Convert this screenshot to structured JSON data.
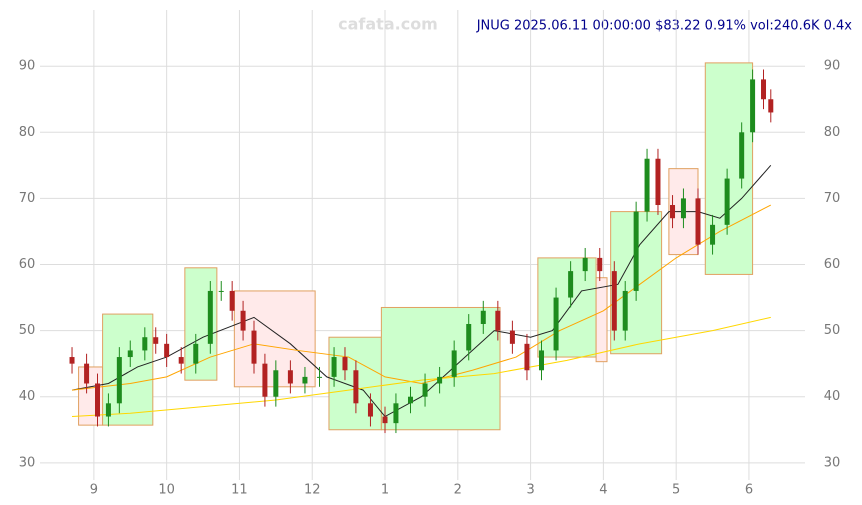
{
  "chart_data": {
    "type": "candlestick",
    "title": "JNUG 2025.06.11 00:00:00 $83.22 0.91% vol:240.6K 0.4x",
    "watermark": "cafata.com",
    "xlim": [
      8.26,
      18.77
    ],
    "ylim": [
      27.4,
      98.5
    ],
    "xticks": [
      9,
      10,
      11,
      12,
      {
        "value": 13,
        "label": "1"
      },
      {
        "value": 14,
        "label": "2"
      },
      {
        "value": 15,
        "label": "3"
      },
      {
        "value": 16,
        "label": "4"
      },
      {
        "value": 17,
        "label": "5"
      },
      {
        "value": 18,
        "label": "6"
      }
    ],
    "yticks": [
      30,
      40,
      50,
      60,
      70,
      80,
      90
    ],
    "grid": true,
    "up_color": "#1e8c1e",
    "down_color": "#b22222",
    "x": [
      8.7,
      8.9,
      9.05,
      9.2,
      9.35,
      9.5,
      9.7,
      9.85,
      10.0,
      10.2,
      10.4,
      10.6,
      10.75,
      10.9,
      11.05,
      11.2,
      11.35,
      11.5,
      11.7,
      11.9,
      12.1,
      12.3,
      12.45,
      12.6,
      12.8,
      13.0,
      13.15,
      13.35,
      13.55,
      13.75,
      13.95,
      14.15,
      14.35,
      14.55,
      14.75,
      14.95,
      15.15,
      15.35,
      15.55,
      15.75,
      15.95,
      16.15,
      16.3,
      16.45,
      16.6,
      16.75,
      16.95,
      17.1,
      17.3,
      17.5,
      17.7,
      17.9,
      18.05,
      18.2,
      18.3
    ],
    "open": [
      46,
      45,
      42,
      37,
      39,
      46,
      47,
      49,
      48,
      46,
      45,
      48,
      56,
      56,
      53,
      50,
      45,
      40,
      44,
      42,
      43,
      43,
      46,
      44,
      39,
      37,
      36,
      39,
      40,
      42,
      43,
      47,
      51,
      53,
      50,
      48,
      44,
      47,
      55,
      59,
      61,
      59,
      50,
      56,
      68,
      76,
      69,
      67,
      70,
      63,
      66,
      73,
      80,
      88,
      85
    ],
    "high": [
      47.5,
      46.5,
      43.5,
      40.5,
      47.5,
      48.5,
      50.5,
      50.5,
      49.5,
      47.5,
      49.5,
      57.5,
      57.5,
      57.5,
      54.5,
      51.5,
      46.5,
      45.5,
      45.5,
      44.5,
      44.5,
      47.5,
      47.5,
      45.5,
      40.5,
      38.5,
      40.5,
      41.5,
      43.5,
      44.5,
      48.5,
      52.5,
      54.5,
      54.5,
      51.5,
      49.5,
      48.5,
      56.5,
      60.5,
      62.5,
      62.5,
      60.5,
      57.5,
      69.5,
      77.5,
      77.5,
      70.5,
      71.5,
      71.5,
      67.5,
      74.5,
      81.5,
      89.5,
      89.5,
      86.5
    ],
    "low": [
      43.5,
      40.5,
      35.5,
      35.5,
      37.5,
      44.5,
      45.5,
      46.5,
      44.5,
      43.5,
      43.5,
      46.5,
      54.5,
      51.5,
      48.5,
      43.5,
      38.5,
      38.5,
      40.5,
      40.5,
      41.5,
      41.5,
      42.5,
      37.5,
      35.5,
      34.5,
      34.5,
      37.5,
      38.5,
      40.5,
      41.5,
      45.5,
      49.5,
      48.5,
      46.5,
      42.5,
      42.5,
      45.5,
      53.5,
      57.5,
      57.5,
      48.5,
      48.5,
      54.5,
      66.5,
      67.5,
      65.5,
      65.5,
      61.5,
      61.5,
      64.5,
      71.5,
      78.5,
      83.5,
      81.5
    ],
    "close": [
      45,
      42,
      37,
      39,
      46,
      47,
      49,
      48,
      46,
      45,
      48,
      56,
      56,
      53,
      50,
      45,
      40,
      44,
      42,
      43,
      43,
      46,
      44,
      39,
      37,
      36,
      39,
      40,
      42,
      43,
      47,
      51,
      53,
      50,
      48,
      44,
      47,
      55,
      59,
      61,
      59,
      50,
      56,
      68,
      76,
      69,
      67,
      70,
      63,
      66,
      73,
      80,
      88,
      85,
      83
    ],
    "boxes": [
      {
        "x": [
          8.79,
          9.12
        ],
        "y": [
          35.7,
          44.5
        ],
        "color": "#ffeaea"
      },
      {
        "x": [
          9.12,
          9.81
        ],
        "y": [
          35.7,
          52.5
        ],
        "color": "#ccffcc"
      },
      {
        "x": [
          10.25,
          10.69
        ],
        "y": [
          42.5,
          59.5
        ],
        "color": "#ccffcc"
      },
      {
        "x": [
          10.93,
          12.04
        ],
        "y": [
          41.5,
          56
        ],
        "color": "#ffeaea"
      },
      {
        "x": [
          12.23,
          12.95
        ],
        "y": [
          35,
          49
        ],
        "color": "#ccffcc"
      },
      {
        "x": [
          12.95,
          14.58
        ],
        "y": [
          35,
          53.5
        ],
        "color": "#ccffcc"
      },
      {
        "x": [
          15.1,
          15.9
        ],
        "y": [
          46,
          61
        ],
        "color": "#ccffcc"
      },
      {
        "x": [
          15.9,
          16.05
        ],
        "y": [
          45.3,
          58
        ],
        "color": "#ffeaea"
      },
      {
        "x": [
          16.1,
          16.8
        ],
        "y": [
          46.5,
          68
        ],
        "color": "#ccffcc"
      },
      {
        "x": [
          16.9,
          17.3
        ],
        "y": [
          61.5,
          74.5
        ],
        "color": "#ffeaea"
      },
      {
        "x": [
          17.4,
          18.05
        ],
        "y": [
          58.5,
          90.5
        ],
        "color": "#ccffcc"
      }
    ],
    "lines": [
      {
        "color": "#222222",
        "x": [
          8.7,
          9.2,
          9.6,
          10.0,
          10.5,
          11.2,
          11.7,
          12.2,
          12.7,
          13.0,
          13.5,
          14.0,
          14.5,
          15.0,
          15.3,
          15.7,
          16.2,
          16.5,
          16.9,
          17.3,
          17.6,
          17.9,
          18.3
        ],
        "values": [
          41,
          42,
          44.5,
          46,
          49,
          52,
          48,
          43,
          41,
          37,
          40,
          45,
          50,
          49,
          50,
          56,
          57,
          63,
          68,
          68,
          67,
          70,
          75
        ]
      },
      {
        "color": "#ffa500",
        "x": [
          8.7,
          9.5,
          10.0,
          10.6,
          11.2,
          11.8,
          12.5,
          13.0,
          13.5,
          14.2,
          14.8,
          15.4,
          16.0,
          16.5,
          17.0,
          17.6,
          18.3
        ],
        "values": [
          41,
          42,
          43,
          46,
          48,
          47,
          46,
          43,
          42,
          44,
          46,
          50,
          53,
          57,
          61,
          65,
          69
        ]
      },
      {
        "color": "#ffd700",
        "x": [
          8.7,
          9.5,
          10.5,
          11.5,
          12.5,
          13.5,
          14.5,
          15.5,
          16.5,
          17.5,
          18.3
        ],
        "values": [
          37,
          37.5,
          38.5,
          39.5,
          41,
          42.5,
          43.5,
          45.5,
          48,
          50,
          52
        ]
      }
    ]
  }
}
